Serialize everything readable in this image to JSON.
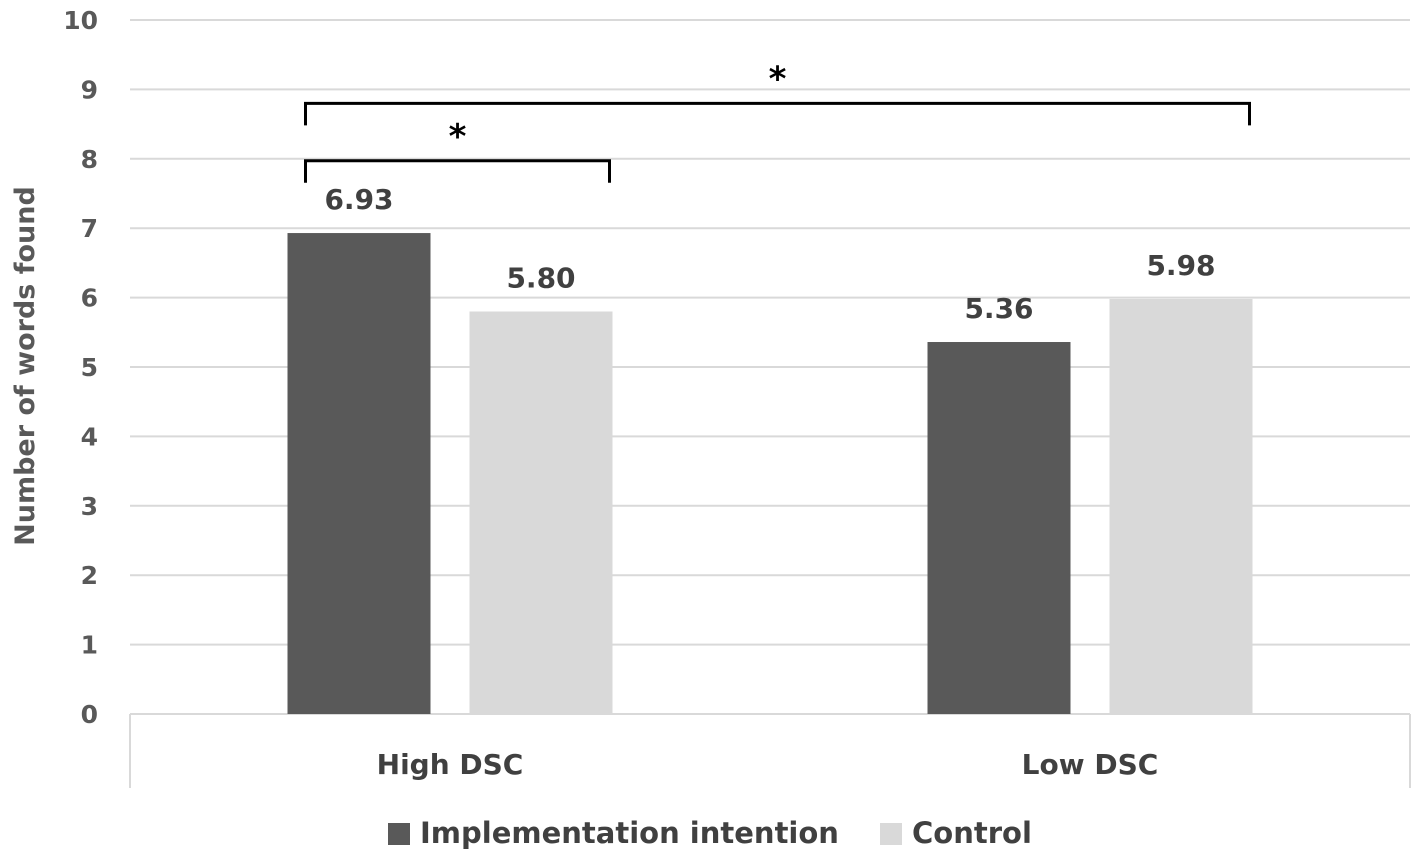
{
  "chart_data": {
    "type": "bar",
    "title": "",
    "xlabel": "",
    "ylabel": "Number of words found",
    "ylim": [
      0,
      10
    ],
    "yticks": [
      0,
      1,
      2,
      3,
      4,
      5,
      6,
      7,
      8,
      9,
      10
    ],
    "grid": true,
    "legend_position": "bottom",
    "categories": [
      "High DSC",
      "Low DSC"
    ],
    "series": [
      {
        "name": "Implementation intention",
        "values": [
          6.93,
          5.36
        ],
        "labels": [
          "6.93",
          "5.36"
        ],
        "color": "#595959"
      },
      {
        "name": "Control",
        "values": [
          5.8,
          5.98
        ],
        "labels": [
          "5.80",
          "5.98"
        ],
        "color": "#d9d9d9"
      }
    ],
    "annotations": [
      {
        "text": "*",
        "type": "significance",
        "from": {
          "category": 0,
          "series": 0
        },
        "to": {
          "category": 0,
          "series": 1
        },
        "level": 8
      },
      {
        "text": "*",
        "type": "significance",
        "from": {
          "category": 0,
          "series": 0
        },
        "to": {
          "category": 1,
          "series": 1
        },
        "level": 9
      }
    ]
  }
}
